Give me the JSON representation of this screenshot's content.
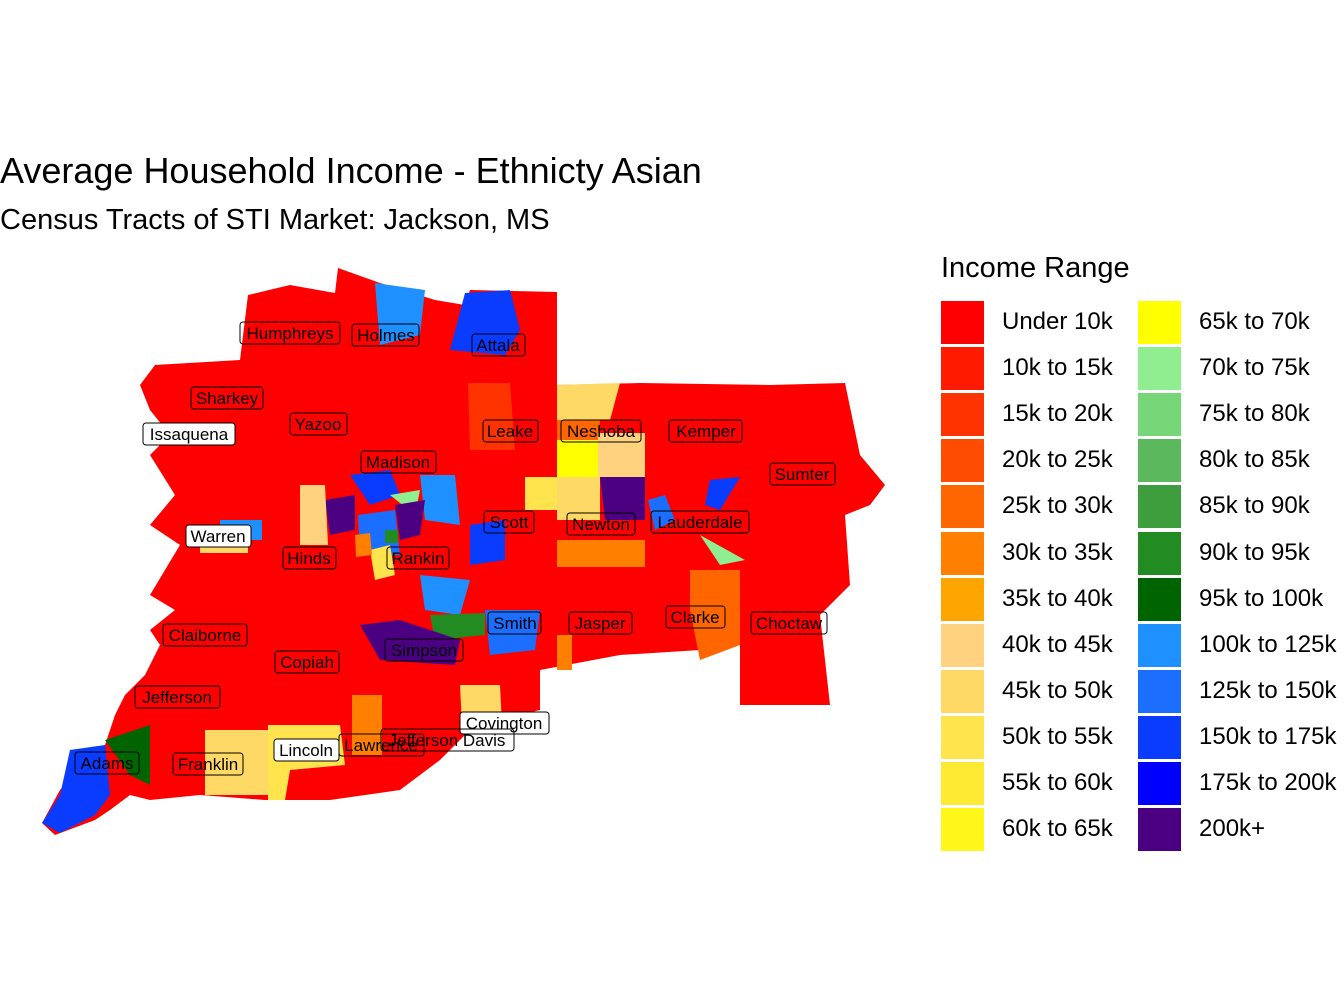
{
  "title": "Average Household Income - Ethnicty Asian",
  "subtitle": "Census Tracts of STI Market: Jackson, MS",
  "legend": {
    "title": "Income Range",
    "items": [
      {
        "label": "Under 10k",
        "color": "#FF0000"
      },
      {
        "label": "10k to 15k",
        "color": "#FF1A00"
      },
      {
        "label": "15k to 20k",
        "color": "#FF3300"
      },
      {
        "label": "20k to 25k",
        "color": "#FF4D00"
      },
      {
        "label": "25k to 30k",
        "color": "#FF6600"
      },
      {
        "label": "30k to 35k",
        "color": "#FF8000"
      },
      {
        "label": "35k to 40k",
        "color": "#FFA500"
      },
      {
        "label": "40k to 45k",
        "color": "#FFD27F"
      },
      {
        "label": "45k to 50k",
        "color": "#FFD966"
      },
      {
        "label": "50k to 55k",
        "color": "#FFE44D"
      },
      {
        "label": "55k to 60k",
        "color": "#FFEA33"
      },
      {
        "label": "60k to 65k",
        "color": "#FFF61A"
      },
      {
        "label": "65k to 70k",
        "color": "#FFFF00"
      },
      {
        "label": "70k to 75k",
        "color": "#90EE90"
      },
      {
        "label": "75k to 80k",
        "color": "#77D677"
      },
      {
        "label": "80k to 85k",
        "color": "#5CB85C"
      },
      {
        "label": "85k to 90k",
        "color": "#3E9E3E"
      },
      {
        "label": "90k to 95k",
        "color": "#228B22"
      },
      {
        "label": "95k to 100k",
        "color": "#006400"
      },
      {
        "label": "100k to 125k",
        "color": "#1E90FF"
      },
      {
        "label": "125k to 150k",
        "color": "#1C6EFF"
      },
      {
        "label": "150k to 175k",
        "color": "#0A3CFF"
      },
      {
        "label": "175k to 200k",
        "color": "#0000FF"
      },
      {
        "label": "200k+",
        "color": "#4B0082"
      }
    ]
  },
  "counties": [
    "Humphreys",
    "Holmes",
    "Attala",
    "Sharkey",
    "Yazoo",
    "Issaquena",
    "Leake",
    "Neshoba",
    "Kemper",
    "Madison",
    "Sumter",
    "Warren",
    "Scott",
    "Newton",
    "Lauderdale",
    "Hinds",
    "Rankin",
    "Smith",
    "Jasper",
    "Clarke",
    "Choctaw",
    "Claiborne",
    "Simpson",
    "Copiah",
    "Jefferson",
    "Covington",
    "Jefferson Davis",
    "Lawrence",
    "Lincoln",
    "Adams",
    "Franklin"
  ]
}
